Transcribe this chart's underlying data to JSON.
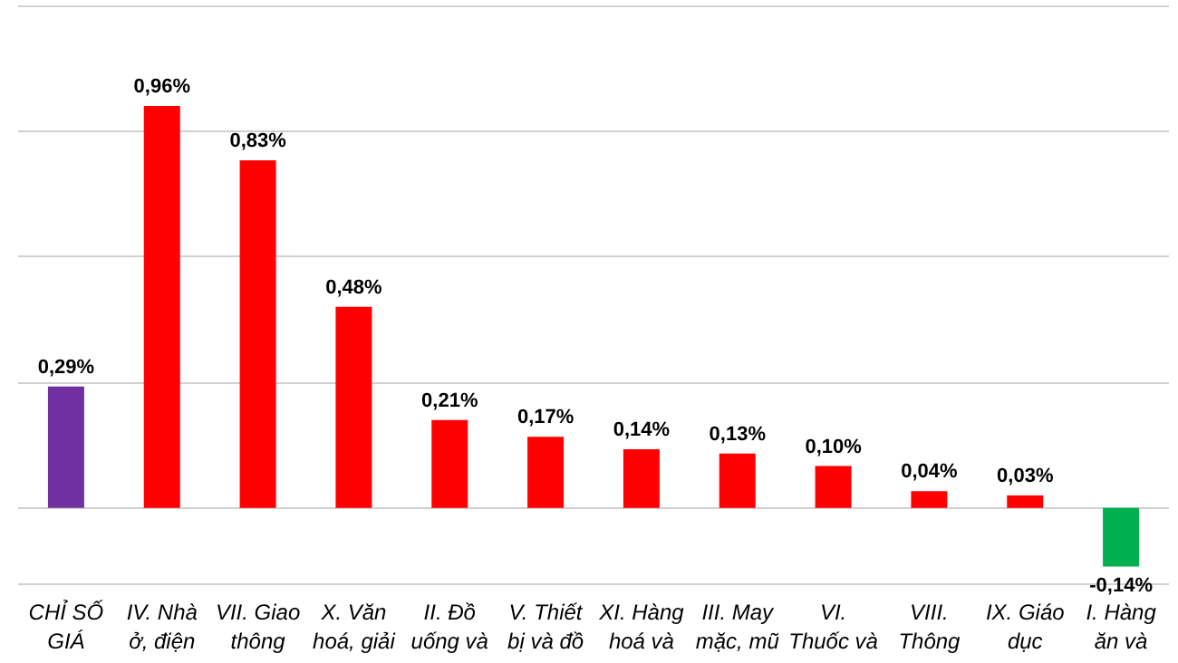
{
  "chart_data": {
    "type": "bar",
    "categories": [
      "CHỈ SỐ\nGIÁ",
      "IV. Nhà\nở, điện",
      "VII. Giao\nthông",
      "X. Văn\nhoá, giải",
      "II. Đồ\nuống và",
      "V. Thiết\nbị và đồ",
      "XI. Hàng\nhoá và",
      "III. May\nmặc, mũ",
      "VI.\nThuốc và",
      "VIII.\nThông",
      "IX. Giáo\ndục",
      "I. Hàng\năn và"
    ],
    "values": [
      0.29,
      0.96,
      0.83,
      0.48,
      0.21,
      0.17,
      0.14,
      0.13,
      0.1,
      0.04,
      0.03,
      -0.14
    ],
    "colors": [
      "#7030a0",
      "#ff0000",
      "#ff0000",
      "#ff0000",
      "#ff0000",
      "#ff0000",
      "#ff0000",
      "#ff0000",
      "#ff0000",
      "#ff0000",
      "#ff0000",
      "#00b050"
    ],
    "value_labels": [
      "0,29%",
      "0,96%",
      "0,83%",
      "0,48%",
      "0,21%",
      "0,17%",
      "0,14%",
      "0,13%",
      "0,10%",
      "0,04%",
      "0,03%",
      "-0,14%"
    ],
    "ylim": [
      -0.18,
      1.2
    ],
    "yticks": [
      {
        "value": -0.18,
        "label": null
      },
      {
        "value": 0,
        "label": null
      },
      {
        "value": 0.3,
        "label": null
      },
      {
        "value": 0.6,
        "label": null
      },
      {
        "value": 0.9,
        "label": null
      },
      {
        "value": 1.2,
        "label": null
      }
    ],
    "grid": "y",
    "tick_labels": "x"
  }
}
